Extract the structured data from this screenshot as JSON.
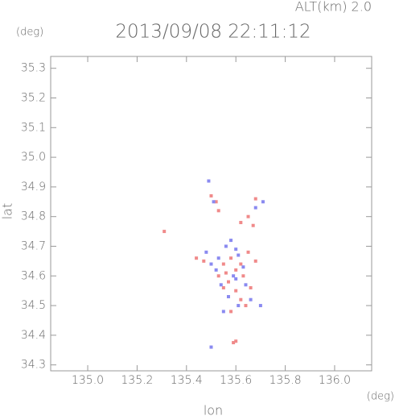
{
  "chart_data": {
    "type": "scatter",
    "title": "2013/09/08 22:11:12",
    "subtitle": "ALT(km) 2.0",
    "y_unit": "(deg)",
    "x_unit": "(deg)",
    "xlabel": "lon",
    "ylabel": "lat",
    "xlim": [
      134.85,
      136.15
    ],
    "ylim": [
      34.28,
      35.34
    ],
    "xticks": [
      {
        "value": 135,
        "label": "135.0"
      },
      135.2,
      135.4,
      135.6,
      135.8,
      {
        "value": 136,
        "label": "136.0"
      }
    ],
    "yticks": [
      34.3,
      34.4,
      34.5,
      34.6,
      34.7,
      34.8,
      34.9,
      {
        "value": 35,
        "label": "35.0"
      },
      35.1,
      35.2,
      35.3
    ],
    "series": [
      {
        "color": "#f08a8a",
        "x": [
          135.52,
          135.5,
          135.53,
          135.62,
          135.65,
          135.67,
          135.68,
          135.31,
          135.44,
          135.47,
          135.55,
          135.58,
          135.6,
          135.62,
          135.65,
          135.63,
          135.57,
          135.55,
          135.6,
          135.62,
          135.58,
          135.64,
          135.6,
          135.59,
          135.56,
          135.66,
          135.53,
          135.68
        ],
        "values": [
          34.85,
          34.87,
          34.82,
          34.78,
          34.8,
          34.77,
          34.86,
          34.75,
          34.66,
          34.65,
          34.64,
          34.66,
          34.62,
          34.64,
          34.68,
          34.6,
          34.58,
          34.56,
          34.55,
          34.52,
          34.48,
          34.5,
          34.38,
          34.375,
          34.61,
          34.56,
          34.6,
          34.65
        ]
      },
      {
        "color": "#8a8af0",
        "x": [
          135.49,
          135.51,
          135.71,
          135.68,
          135.48,
          135.5,
          135.52,
          135.56,
          135.58,
          135.61,
          135.63,
          135.59,
          135.54,
          135.57,
          135.61,
          135.55,
          135.7,
          135.66,
          135.6,
          135.53,
          135.5,
          135.6,
          135.64
        ],
        "values": [
          34.92,
          34.85,
          34.85,
          34.83,
          34.68,
          34.64,
          34.62,
          34.7,
          34.72,
          34.67,
          34.63,
          34.6,
          34.57,
          34.53,
          34.5,
          34.48,
          34.5,
          34.52,
          34.59,
          34.66,
          34.36,
          34.69,
          34.57
        ]
      }
    ]
  }
}
